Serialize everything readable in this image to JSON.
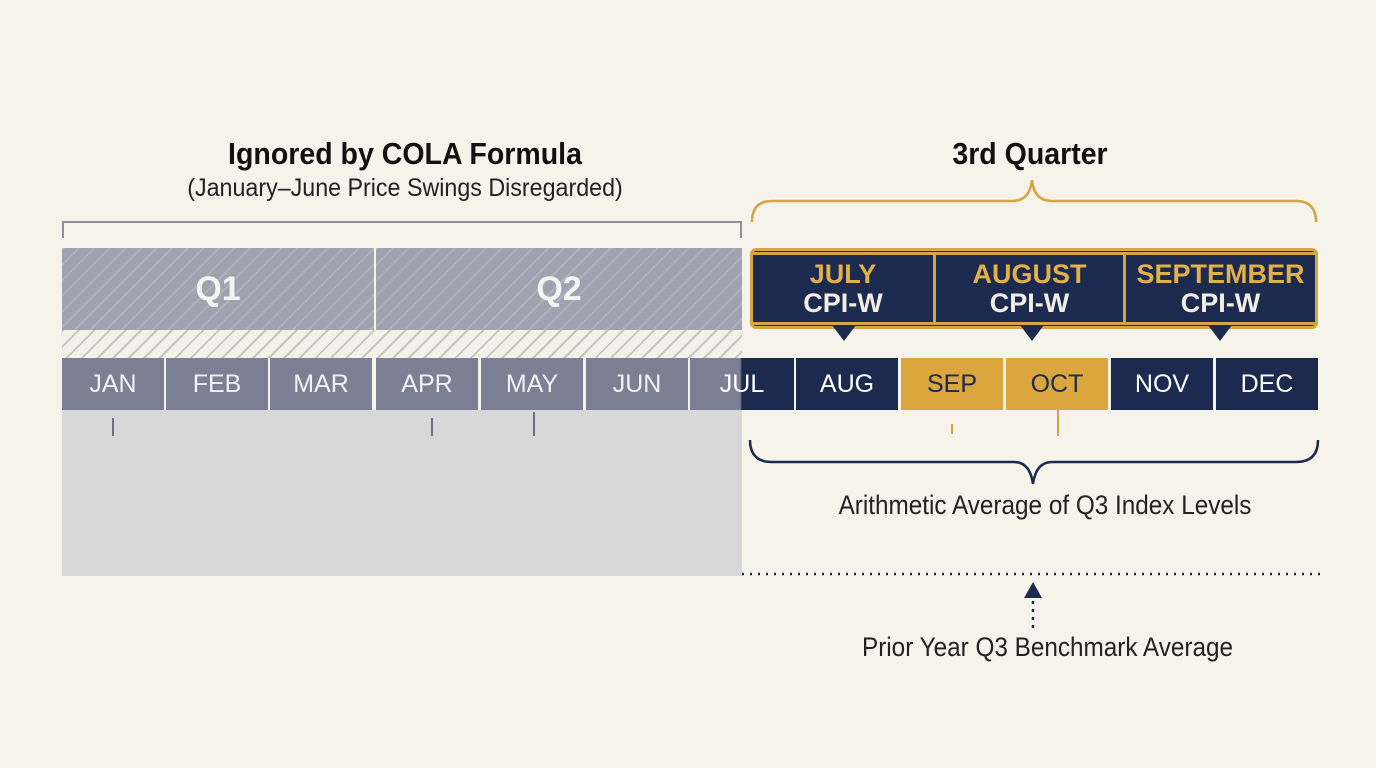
{
  "left_section": {
    "title": "Ignored by COLA Formula",
    "subtitle": "(January–June Price Swings Disregarded)",
    "quarters": [
      "Q1",
      "Q2"
    ]
  },
  "right_section": {
    "title": "3rd Quarter",
    "cpi_boxes": [
      {
        "month": "JULY",
        "index": "CPI-W"
      },
      {
        "month": "AUGUST",
        "index": "CPI-W"
      },
      {
        "month": "SEPTEMBER",
        "index": "CPI-W"
      }
    ],
    "average_label": "Arithmetic Average of Q3 Index Levels",
    "benchmark_label": "Prior Year Q3 Benchmark Average"
  },
  "months": [
    "JAN",
    "FEB",
    "MAR",
    "APR",
    "MAY",
    "JUN",
    "JUL",
    "AUG",
    "SEP",
    "OCT",
    "NOV",
    "DEC"
  ],
  "colors": {
    "background": "#f6f3ea",
    "navy": "#1b2a4e",
    "gold": "#d4a445",
    "gray_month": "#7b8094",
    "gray_quarter": "#9fa3b0"
  }
}
